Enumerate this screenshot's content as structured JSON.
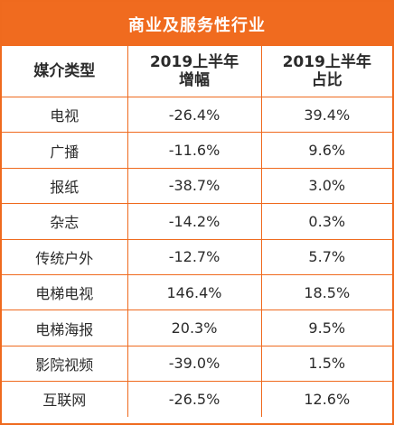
{
  "title": "商业及服务性行业",
  "headers": {
    "col1": "媒介类型",
    "col2_line1": "2019上半年",
    "col2_line2": "增幅",
    "col3_line1": "2019上半年",
    "col3_line2": "占比"
  },
  "rows": [
    {
      "media": "电视",
      "growth": "-26.4%",
      "share": "39.4%"
    },
    {
      "media": "广播",
      "growth": "-11.6%",
      "share": "9.6%"
    },
    {
      "media": "报纸",
      "growth": "-38.7%",
      "share": "3.0%"
    },
    {
      "media": "杂志",
      "growth": "-14.2%",
      "share": "0.3%"
    },
    {
      "media": "传统户外",
      "growth": "-12.7%",
      "share": "5.7%"
    },
    {
      "media": "电梯电视",
      "growth": "146.4%",
      "share": "18.5%"
    },
    {
      "media": "电梯海报",
      "growth": "20.3%",
      "share": "9.5%"
    },
    {
      "media": "影院视频",
      "growth": "-39.0%",
      "share": "1.5%"
    },
    {
      "media": "互联网",
      "growth": "-26.5%",
      "share": "12.6%"
    }
  ],
  "colors": {
    "accent": "#f06b1f",
    "border": "#ef6a1e",
    "text": "#2b2b2b"
  }
}
